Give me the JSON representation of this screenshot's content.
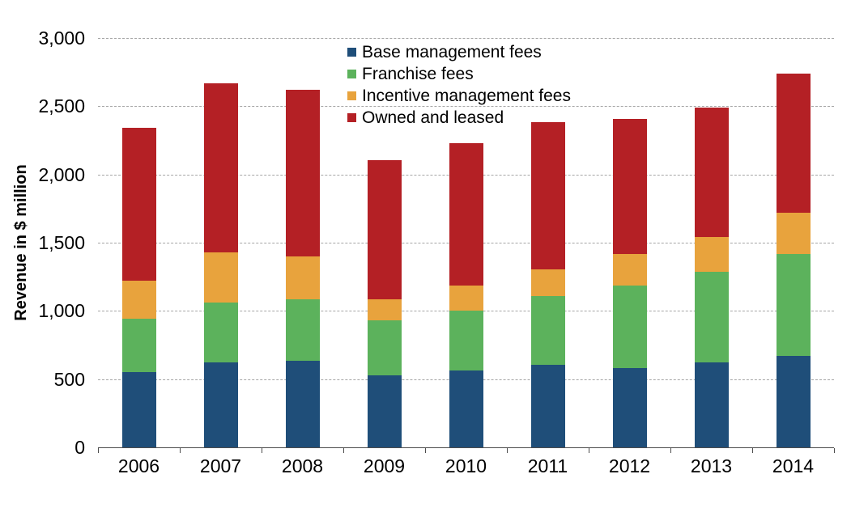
{
  "chart_data": {
    "type": "bar",
    "stacked": true,
    "title": "",
    "xlabel": "",
    "ylabel": "Revenue in $ million",
    "categories": [
      "2006",
      "2007",
      "2008",
      "2009",
      "2010",
      "2011",
      "2012",
      "2013",
      "2014"
    ],
    "series": [
      {
        "name": "Base management fees",
        "key": "base-management-fees",
        "color": "#1F4E79",
        "values": [
          553,
          620,
          635,
          530,
          562,
          602,
          581,
          621,
          672
        ]
      },
      {
        "name": "Franchise fees",
        "key": "franchise-fees",
        "color": "#5CB25C",
        "values": [
          390,
          439,
          451,
          400,
          441,
          506,
          607,
          666,
          745
        ]
      },
      {
        "name": "Incentive management fees",
        "key": "incentive-management-fees",
        "color": "#E8A33D",
        "values": [
          281,
          369,
          311,
          154,
          182,
          195,
          232,
          256,
          302
        ]
      },
      {
        "name": "Owned and leased",
        "key": "owned-and-leased",
        "color": "#B42025",
        "values": [
          1119,
          1240,
          1222,
          1019,
          1046,
          1083,
          989,
          950,
          1022
        ]
      }
    ],
    "ylim": [
      0,
      3000
    ],
    "yticks": [
      {
        "value": 0,
        "label": "0"
      },
      {
        "value": 500,
        "label": "500"
      },
      {
        "value": 1000,
        "label": "1,000"
      },
      {
        "value": 1500,
        "label": "1,500"
      },
      {
        "value": 2000,
        "label": "2,000"
      },
      {
        "value": 2500,
        "label": "2,500"
      },
      {
        "value": 3000,
        "label": "3,000"
      }
    ],
    "grid": {
      "horizontal": true,
      "style": "dashed",
      "color": "#A6A6A6"
    },
    "legend_position": "inside-top-center",
    "axis_color": "#4D4D4D",
    "text_color": "#000000",
    "background": "#FFFFFF"
  }
}
